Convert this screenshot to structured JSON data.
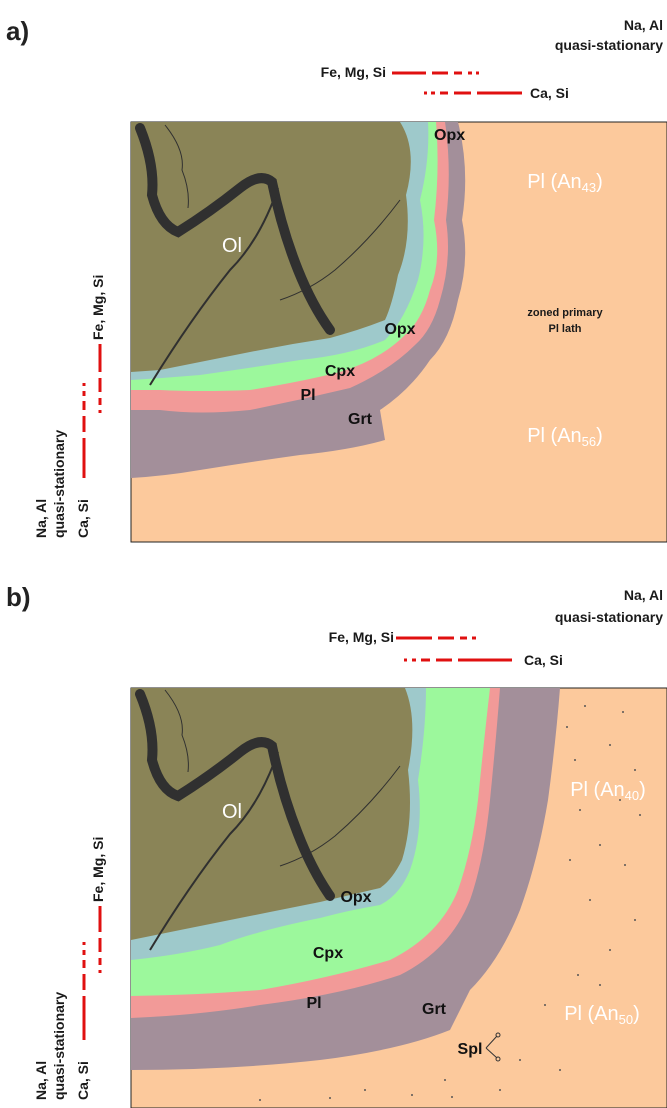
{
  "panels": [
    {
      "id": "a",
      "panel_label": "a)",
      "top_right_line1": "Na, Al",
      "top_right_line2": "quasi-stationary",
      "flux_fe": "Fe, Mg, Si",
      "flux_ca": "Ca, Si",
      "side_fe": "Fe, Mg, Si",
      "side_na_line1": "Na, Al",
      "side_na_line2": "quasi-stationary",
      "side_ca": "Ca, Si",
      "ol": "Ol",
      "opx_top": "Opx",
      "opx": "Opx",
      "cpx": "Cpx",
      "pl": "Pl",
      "grt": "Grt",
      "note_line1": "zoned primary",
      "note_line2": "Pl lath",
      "pl_an_upper_prefix": "Pl (An",
      "pl_an_upper_sub": "43",
      "pl_an_lower_prefix": "Pl (An",
      "pl_an_lower_sub": "56",
      "paren": ")"
    },
    {
      "id": "b",
      "panel_label": "b)",
      "top_right_line1": "Na, Al",
      "top_right_line2": "quasi-stationary",
      "flux_fe": "Fe, Mg, Si",
      "flux_ca": "Ca, Si",
      "side_fe": "Fe, Mg, Si",
      "side_na_line1": "Na, Al",
      "side_na_line2": "quasi-stationary",
      "side_ca": "Ca, Si",
      "ol": "Ol",
      "opx": "Opx",
      "cpx": "Cpx",
      "pl": "Pl",
      "grt": "Grt",
      "spl": "Spl",
      "pl_an_upper_prefix": "Pl (An",
      "pl_an_upper_sub": "40",
      "pl_an_lower_prefix": "Pl (An",
      "pl_an_lower_sub": "50",
      "paren": ")"
    }
  ],
  "colors": {
    "olivine": "#8a8457",
    "opx": "#9ec9cb",
    "cpx": "#9cf89c",
    "plagioclase_rim": "#f29a98",
    "garnet": "#a38f9a",
    "plagioclase_host": "#fcc99c",
    "flux_arrow": "#e01010",
    "crack": "#303030"
  }
}
